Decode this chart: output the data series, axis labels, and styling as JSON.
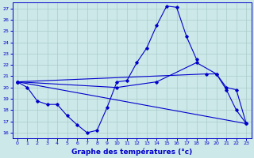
{
  "bg_color": "#cce8e8",
  "line_color": "#0000cc",
  "grid_color": "#aacccc",
  "xlabel": "Graphe des températures (°c)",
  "ylim": [
    15.5,
    27.5
  ],
  "xlim": [
    -0.5,
    23.5
  ],
  "yticks": [
    16,
    17,
    18,
    19,
    20,
    21,
    22,
    23,
    24,
    25,
    26,
    27
  ],
  "xticks": [
    0,
    1,
    2,
    3,
    4,
    5,
    6,
    7,
    8,
    9,
    10,
    11,
    12,
    13,
    14,
    15,
    16,
    17,
    18,
    19,
    20,
    21,
    22,
    23
  ],
  "line1_x": [
    0,
    1,
    2,
    3,
    4,
    5,
    6,
    7,
    8,
    9,
    10,
    11,
    12,
    13,
    14,
    15,
    16,
    17,
    18
  ],
  "line1_y": [
    20.5,
    20.0,
    18.8,
    18.5,
    18.5,
    17.5,
    16.7,
    16.0,
    16.2,
    18.2,
    20.5,
    20.6,
    22.2,
    23.5,
    25.5,
    27.2,
    27.1,
    24.5,
    22.5
  ],
  "line2_x": [
    0,
    23
  ],
  "line2_y": [
    20.5,
    16.8
  ],
  "line3_x": [
    0,
    10,
    14,
    18,
    20,
    21,
    22,
    23
  ],
  "line3_y": [
    20.5,
    20.0,
    20.5,
    22.2,
    21.2,
    19.8,
    18.0,
    16.8
  ],
  "line4_x": [
    0,
    19,
    20,
    21,
    22,
    23
  ],
  "line4_y": [
    20.5,
    21.2,
    21.2,
    20.0,
    19.8,
    16.8
  ]
}
